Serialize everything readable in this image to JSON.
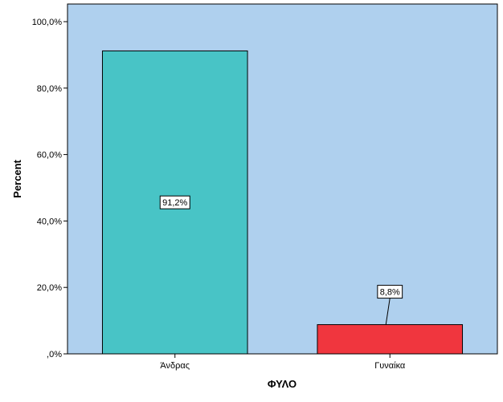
{
  "chart_data": {
    "type": "bar",
    "categories": [
      "Άνδρας",
      "Γυναίκα"
    ],
    "values": [
      91.2,
      8.8
    ],
    "data_labels": [
      "91,2%",
      "8,8%"
    ],
    "bar_colors": [
      "#48c4c6",
      "#f0363e"
    ],
    "plot_background": "#afd0ee",
    "xlabel": "ΦΥΛΟ",
    "ylabel": "Percent",
    "ylim": [
      0,
      100
    ],
    "yticks": [
      0,
      20,
      40,
      60,
      80,
      100
    ],
    "ytick_labels": [
      ",0%",
      "20,0%",
      "40,0%",
      "60,0%",
      "80,0%",
      "100,0%"
    ],
    "grid": false
  }
}
